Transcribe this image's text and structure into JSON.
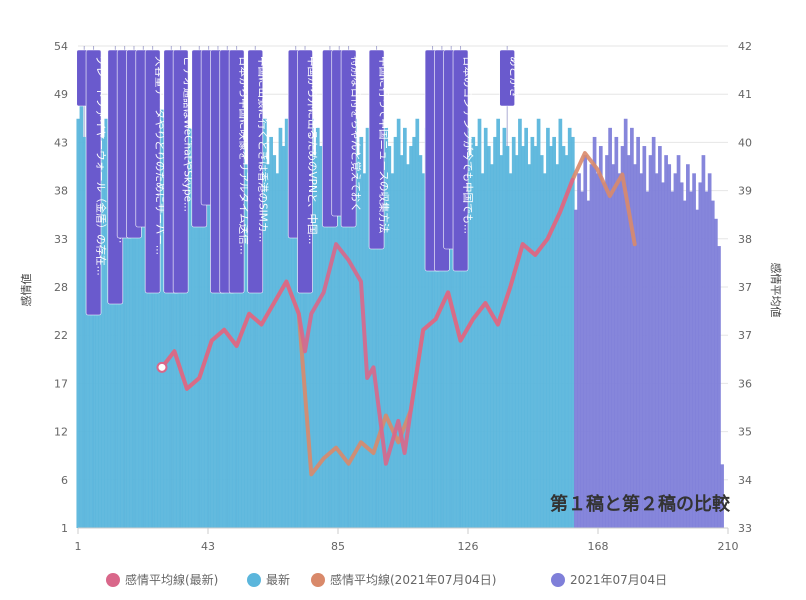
{
  "chart_data": {
    "type": "bar",
    "x_ticks": [
      "1",
      "43",
      "85",
      "126",
      "168",
      "210"
    ],
    "x_range": [
      1,
      210
    ],
    "y_left": {
      "label": "感情値",
      "ticks": [
        "1",
        "6",
        "12",
        "17",
        "22",
        "28",
        "33",
        "38",
        "43",
        "49",
        "54"
      ],
      "range": [
        1,
        54
      ]
    },
    "y_right": {
      "label": "感情平均値",
      "ticks": [
        "33",
        "34",
        "35",
        "36",
        "37",
        "37",
        "38",
        "39",
        "40",
        "41",
        "42"
      ],
      "range": [
        33,
        42
      ]
    },
    "watermark": "第１稿と第２稿の比較",
    "legend": [
      {
        "name": "感情平均線(最新)",
        "color": "#d9678a"
      },
      {
        "name": "最新",
        "color": "#5bb6dc"
      },
      {
        "name": "感情平均線(2021年07月04日)",
        "color": "#d9896a"
      },
      {
        "name": "2021年07月04日",
        "color": "#7f7fd9"
      }
    ],
    "annotations": [
      {
        "x": 3,
        "text": "はじめに"
      },
      {
        "x": 6,
        "text": "グレートファイヤーウォール（金盾）の存在..."
      },
      {
        "x": 13,
        "text": "既にある程度はWeChat（微信）はイ..."
      },
      {
        "x": 16,
        "text": "いまでは違う手段を使って・..."
      },
      {
        "x": 19,
        "text": "VPNは常時だけど不安定でいない"
      },
      {
        "x": 22,
        "text": "一番困るのは大容量データの送信"
      },
      {
        "x": 25,
        "text": "大容量データやりとりのためにサーバー..."
      },
      {
        "x": 31,
        "text": "Bootstrapを使ったサイトが動..."
      },
      {
        "x": 34,
        "text": "ビデオ通話はWeChatやSkype..."
      },
      {
        "x": 40,
        "text": "ドキュメント送るのはぶ・..."
      },
      {
        "x": 43,
        "text": "ドキュメントってする..."
      },
      {
        "x": 46,
        "text": "その環境問題は、グレートファイヤーウ..."
      },
      {
        "x": 49,
        "text": "中国の外から中国国内へのライブ配信は..."
      },
      {
        "x": 52,
        "text": "日本から中国に映像をリアルタイム送信..."
      },
      {
        "x": 58,
        "text": "中国に出張に行くときは香港のSIMカ..."
      },
      {
        "x": 71,
        "text": "中国国内から外に出るVPN..."
      },
      {
        "x": 74,
        "text": "中国から外に出るためのVPNと、中国..."
      },
      {
        "x": 82,
        "text": "WeChatの翻訳機能の頼り方"
      },
      {
        "x": 85,
        "text": "台湾や香港ではちゃんと..."
      },
      {
        "x": 88,
        "text": "特別な日付をちゃんと覚えておく"
      },
      {
        "x": 97,
        "text": "中国に行って中国ニュースの収集方法"
      },
      {
        "x": 115,
        "text": "アルファベットを見るとタクシー運..."
      },
      {
        "x": 118,
        "text": "変化は良いことだと思っていると、..."
      },
      {
        "x": 121,
        "text": "急にそう言わなくなった話など..."
      },
      {
        "x": 124,
        "text": "日本のコンテンツが今でも中国でも..."
      },
      {
        "x": 139,
        "text": "あとがき"
      }
    ],
    "series": [
      {
        "name": "最新",
        "type": "bar",
        "color": "#5bb6dc",
        "x": [
          1,
          2,
          3,
          4,
          5,
          6,
          7,
          8,
          9,
          10,
          11,
          12,
          13,
          14,
          15,
          16,
          17,
          18,
          19,
          20,
          21,
          22,
          23,
          24,
          25,
          26,
          27,
          28,
          29,
          30,
          31,
          32,
          33,
          34,
          35,
          36,
          37,
          38,
          39,
          40,
          41,
          42,
          43,
          44,
          45,
          46,
          47,
          48,
          49,
          50,
          51,
          52,
          53,
          54,
          55,
          56,
          57,
          58,
          59,
          60,
          61,
          62,
          63,
          64,
          65,
          66,
          67,
          68,
          69,
          70,
          71,
          72,
          73,
          74,
          75,
          76,
          77,
          78,
          79,
          80,
          81,
          82,
          83,
          84,
          85,
          86,
          87,
          88,
          89,
          90,
          91,
          92,
          93,
          94,
          95,
          96,
          97,
          98,
          99,
          100,
          101,
          102,
          103,
          104,
          105,
          106,
          107,
          108,
          109,
          110,
          111,
          112,
          113,
          114,
          115,
          116,
          117,
          118,
          119,
          120,
          121,
          122,
          123,
          124,
          125,
          126,
          127,
          128,
          129,
          130,
          131,
          132,
          133,
          134,
          135,
          136,
          137,
          138,
          139,
          140,
          141,
          142,
          143,
          144,
          145,
          146,
          147,
          148,
          149,
          150,
          151,
          152,
          153,
          154,
          155,
          156,
          157,
          158,
          159,
          160
        ],
        "values": [
          46,
          49,
          44,
          48,
          45,
          47,
          43,
          40,
          44,
          46,
          42,
          39,
          41,
          44,
          43,
          46,
          42,
          40,
          45,
          47,
          43,
          41,
          44,
          46,
          42,
          38,
          44,
          47,
          43,
          41,
          45,
          43,
          40,
          44,
          46,
          42,
          45,
          43,
          41,
          44,
          47,
          43,
          45,
          42,
          40,
          44,
          46,
          43,
          41,
          45,
          44,
          42,
          46,
          43,
          41,
          44,
          40,
          42,
          45,
          43,
          46,
          41,
          44,
          42,
          40,
          45,
          43,
          46,
          42,
          44,
          41,
          45,
          43,
          40,
          44,
          46,
          42,
          45,
          43,
          41,
          44,
          42,
          46,
          43,
          40,
          45,
          44,
          41,
          43,
          46,
          42,
          44,
          40,
          45,
          43,
          41,
          46,
          44,
          42,
          45,
          43,
          40,
          44,
          46,
          42,
          45,
          41,
          43,
          44,
          46,
          42,
          40,
          45,
          43,
          44,
          41,
          46,
          42,
          45,
          43,
          40,
          44,
          46,
          43,
          41,
          45,
          42,
          44,
          43,
          46,
          40,
          45,
          43,
          41,
          44,
          46,
          42,
          45,
          43,
          40,
          44,
          42,
          46,
          43,
          45,
          41,
          44,
          43,
          46,
          42,
          40,
          45,
          43,
          44,
          41,
          46,
          43,
          42,
          45,
          44
        ]
      },
      {
        "name": "2021年07月04日",
        "type": "bar",
        "color": "#7f7fd9",
        "x": [
          161,
          162,
          163,
          164,
          165,
          166,
          167,
          168,
          169,
          170,
          171,
          172,
          173,
          174,
          175,
          176,
          177,
          178,
          179,
          180,
          181,
          182,
          183,
          184,
          185,
          186,
          187,
          188,
          189,
          190,
          191,
          192,
          193,
          194,
          195,
          196,
          197,
          198,
          199,
          200,
          201,
          202,
          203,
          204,
          205,
          206,
          207,
          208
        ],
        "values": [
          36,
          40,
          38,
          42,
          37,
          41,
          44,
          40,
          43,
          39,
          42,
          45,
          41,
          44,
          40,
          43,
          46,
          42,
          45,
          41,
          44,
          40,
          43,
          38,
          42,
          44,
          40,
          43,
          39,
          42,
          41,
          38,
          40,
          42,
          39,
          37,
          41,
          38,
          40,
          36,
          39,
          42,
          38,
          40,
          37,
          35,
          32,
          8
        ]
      },
      {
        "name": "感情平均線(2021年07月04日)",
        "type": "line",
        "axis": "right",
        "color": "#d9896a",
        "x": [
          28,
          32,
          36,
          40,
          44,
          48,
          52,
          56,
          60,
          64,
          68,
          72,
          76,
          80,
          84,
          88,
          92,
          96,
          100,
          104,
          108,
          112,
          116,
          120,
          124,
          128,
          132,
          136,
          140,
          144,
          148,
          152,
          156,
          160,
          164,
          168,
          172,
          176,
          180
        ],
        "values": [
          36.0,
          36.3,
          35.6,
          35.8,
          36.5,
          36.7,
          36.4,
          37.0,
          36.8,
          37.2,
          37.6,
          37.0,
          34.0,
          34.3,
          34.5,
          34.2,
          34.6,
          34.4,
          35.1,
          34.6,
          35.2,
          36.7,
          36.9,
          37.4,
          36.5,
          36.9,
          37.2,
          36.8,
          37.5,
          38.3,
          38.1,
          38.4,
          38.9,
          39.5,
          40.0,
          39.7,
          39.2,
          39.6,
          38.3
        ]
      },
      {
        "name": "感情平均線(最新)",
        "type": "line",
        "axis": "right",
        "color": "#d9678a",
        "x": [
          28,
          32,
          36,
          40,
          44,
          48,
          52,
          56,
          60,
          64,
          68,
          72,
          74,
          76,
          80,
          84,
          88,
          92,
          94,
          96,
          100,
          104,
          106,
          108,
          112,
          116,
          120,
          124,
          128,
          132,
          136,
          140,
          144,
          148,
          152,
          156,
          160
        ],
        "values": [
          36.0,
          36.3,
          35.6,
          35.8,
          36.5,
          36.7,
          36.4,
          37.0,
          36.8,
          37.2,
          37.6,
          37.0,
          36.3,
          37.0,
          37.4,
          38.3,
          38.0,
          37.6,
          35.8,
          36.0,
          34.2,
          35.0,
          34.4,
          35.2,
          36.7,
          36.9,
          37.4,
          36.5,
          36.9,
          37.2,
          36.8,
          37.5,
          38.3,
          38.1,
          38.4,
          38.9,
          39.5
        ]
      }
    ]
  }
}
